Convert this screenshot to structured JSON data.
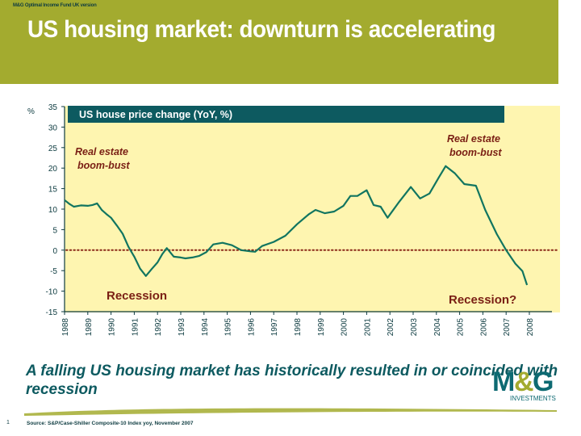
{
  "header": {
    "fund_label": "M&G Optimal Income Fund UK version",
    "title": "US housing market: downturn is accelerating",
    "background_color": "#a3ab2f"
  },
  "footer": {
    "message": "A falling US housing market has historically resulted in or coincided with recession",
    "source": "Source: S&P/Case-Shiller Composite-10 Index yoy, November 2007",
    "page_number": "1",
    "logo": {
      "mark": "M&G",
      "subtitle": "INVESTMENTS",
      "primary_color": "#0d6a72",
      "accent_color": "#a3ab2f"
    }
  },
  "chart_data": {
    "type": "line",
    "title": "US house price change (YoY, %)",
    "ylabel": "%",
    "xlabel": "",
    "xlim": [
      1988,
      2008
    ],
    "ylim": [
      -15,
      35
    ],
    "yticks": [
      35,
      30,
      25,
      20,
      15,
      10,
      5,
      0,
      -5,
      -10,
      -15
    ],
    "xticks": [
      "1988",
      "1989",
      "1990",
      "1991",
      "1992",
      "1993",
      "1994",
      "1995",
      "1996",
      "1997",
      "1998",
      "1999",
      "2000",
      "2001",
      "2002",
      "2003",
      "2004",
      "2005",
      "2006",
      "2007",
      "2008"
    ],
    "grid": false,
    "reference_line": {
      "y": 0,
      "style": "dotted",
      "color": "#8b2a1a"
    },
    "series": [
      {
        "name": "US house price change (YoY, %)",
        "color": "#117560",
        "x": [
          1988.0,
          1988.2,
          1988.4,
          1988.7,
          1989.0,
          1989.2,
          1989.4,
          1989.6,
          1989.8,
          1990.0,
          1990.25,
          1990.5,
          1990.75,
          1991.0,
          1991.25,
          1991.5,
          1991.75,
          1992.0,
          1992.2,
          1992.4,
          1992.7,
          1993.0,
          1993.2,
          1993.5,
          1993.8,
          1994.1,
          1994.4,
          1994.8,
          1995.2,
          1995.6,
          1996.0,
          1996.2,
          1996.5,
          1997.0,
          1997.5,
          1998.0,
          1998.5,
          1998.8,
          1999.2,
          1999.6,
          2000.0,
          2000.3,
          2000.6,
          2001.0,
          2001.3,
          2001.6,
          2001.9,
          2002.4,
          2002.9,
          2003.3,
          2003.7,
          2004.1,
          2004.4,
          2004.8,
          2005.2,
          2005.7,
          2006.1,
          2006.6,
          2007.0,
          2007.4,
          2007.7,
          2007.9
        ],
        "values": [
          12.2,
          11.3,
          10.6,
          10.9,
          10.8,
          11.0,
          11.4,
          9.8,
          8.8,
          7.9,
          6.0,
          4.0,
          0.8,
          -1.6,
          -4.5,
          -6.3,
          -4.6,
          -3.0,
          -1.0,
          0.5,
          -1.6,
          -1.8,
          -2.0,
          -1.8,
          -1.4,
          -0.5,
          1.4,
          1.8,
          1.2,
          0.0,
          -0.3,
          -0.4,
          1.0,
          2.0,
          3.5,
          6.3,
          8.7,
          9.8,
          9.0,
          9.4,
          10.8,
          13.2,
          13.2,
          14.6,
          11.0,
          10.6,
          7.9,
          11.8,
          15.4,
          12.6,
          13.8,
          17.7,
          20.5,
          18.7,
          16.1,
          15.7,
          9.8,
          3.9,
          0.0,
          -3.3,
          -5.1,
          -8.5
        ]
      }
    ],
    "annotations": [
      {
        "text_lines": [
          "Real estate",
          "boom-bust"
        ],
        "position": "upper-left"
      },
      {
        "text_lines": [
          "Real estate",
          "boom-bust"
        ],
        "position": "upper-right"
      },
      {
        "text": "Recession",
        "position": "lower-left"
      },
      {
        "text": "Recession?",
        "position": "lower-right"
      }
    ]
  }
}
